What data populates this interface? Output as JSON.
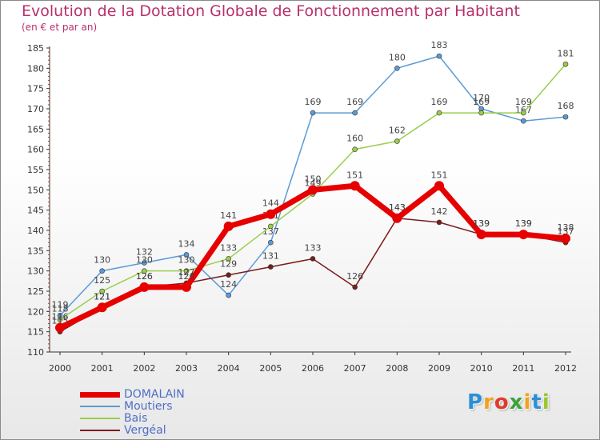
{
  "title": "Evolution de la Dotation Globale de Fonctionnement par Habitant",
  "subtitle": "(en € et par an)",
  "brand": {
    "text": "Proxiti",
    "letter_colors": [
      "#2b8fd6",
      "#f0a21e",
      "#e03c2c",
      "#3aa33a",
      "#f0a21e",
      "#2b8fd6",
      "#9ac72f"
    ]
  },
  "chart_data": {
    "type": "line",
    "x": [
      2000,
      2001,
      2002,
      2003,
      2004,
      2005,
      2006,
      2007,
      2008,
      2009,
      2010,
      2011,
      2012
    ],
    "ylim": [
      110,
      185
    ],
    "yticks": [
      110,
      115,
      120,
      125,
      130,
      135,
      140,
      145,
      150,
      155,
      160,
      165,
      170,
      175,
      180,
      185
    ],
    "grid": false,
    "series": [
      {
        "name": "Moutiers",
        "color": "#5b9bd5",
        "values": [
          119,
          130,
          132,
          134,
          124,
          137,
          169,
          169,
          180,
          183,
          170,
          167,
          168
        ]
      },
      {
        "name": "Bais",
        "color": "#9acd4c",
        "values": [
          118,
          125,
          130,
          130,
          133,
          141,
          149,
          160,
          162,
          169,
          169,
          169,
          181
        ]
      },
      {
        "name": "Vergéal",
        "color": "#7b1c1c",
        "values": [
          115,
          121,
          126,
          127,
          129,
          131,
          133,
          126,
          143,
          142,
          139,
          139,
          137
        ]
      },
      {
        "name": "DOMALAIN",
        "color": "#e60000",
        "values": [
          116,
          121,
          126,
          126,
          141,
          144,
          150,
          151,
          143,
          151,
          139,
          139,
          138
        ]
      }
    ],
    "legend_order": [
      "DOMALAIN",
      "Moutiers",
      "Bais",
      "Vergéal"
    ]
  }
}
